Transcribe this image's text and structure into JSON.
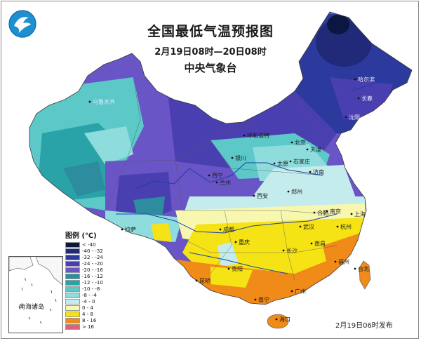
{
  "header": {
    "title": "全国最低气温预报图",
    "period": "2月19日08时—20日08时",
    "agency": "中央气象台"
  },
  "legend": {
    "title": "图例 (℃)",
    "items": [
      {
        "label": "< -40",
        "color": "#0b1740"
      },
      {
        "label": "-40 - -32",
        "color": "#202a78"
      },
      {
        "label": "-32 - -24",
        "color": "#2b3a9c"
      },
      {
        "label": "-24 - -20",
        "color": "#4a3fb0"
      },
      {
        "label": "-20 - -16",
        "color": "#6a55c6"
      },
      {
        "label": "-16 - -12",
        "color": "#2d8c9e"
      },
      {
        "label": "-12 - -10",
        "color": "#2aa3a8"
      },
      {
        "label": "-10 - -8",
        "color": "#5cc8c8"
      },
      {
        "label": "-8 - -4",
        "color": "#8fdcdc"
      },
      {
        "label": "-4 - 0",
        "color": "#c4ecec"
      },
      {
        "label": "0 - 4",
        "color": "#f7f7b0"
      },
      {
        "label": "4 - 8",
        "color": "#f5e315"
      },
      {
        "label": "8 - 16",
        "color": "#f08a18"
      },
      {
        "label": "> 16",
        "color": "#e0607a"
      }
    ]
  },
  "cities": [
    {
      "name": "哈尔滨",
      "light": true
    },
    {
      "name": "长春",
      "light": true
    },
    {
      "name": "乌鲁木齐",
      "light": true
    },
    {
      "name": "沈阳",
      "light": true
    },
    {
      "name": "呼和浩特",
      "light": false
    },
    {
      "name": "北京",
      "light": false
    },
    {
      "name": "天津",
      "light": false
    },
    {
      "name": "银川",
      "light": false
    },
    {
      "name": "太原",
      "light": false
    },
    {
      "name": "石家庄",
      "light": false
    },
    {
      "name": "济南",
      "light": false
    },
    {
      "name": "西宁",
      "light": false
    },
    {
      "name": "兰州",
      "light": false
    },
    {
      "name": "郑州",
      "light": false
    },
    {
      "name": "西安",
      "light": false
    },
    {
      "name": "合肥",
      "light": false
    },
    {
      "name": "南京",
      "light": false
    },
    {
      "name": "上海",
      "light": false
    },
    {
      "name": "拉萨",
      "light": false
    },
    {
      "name": "成都",
      "light": false
    },
    {
      "name": "武汉",
      "light": false
    },
    {
      "name": "杭州",
      "light": false
    },
    {
      "name": "重庆",
      "light": false
    },
    {
      "name": "长沙",
      "light": false
    },
    {
      "name": "南昌",
      "light": false
    },
    {
      "name": "贵阳",
      "light": false
    },
    {
      "name": "福州",
      "light": false
    },
    {
      "name": "台北",
      "light": false
    },
    {
      "name": "昆明",
      "light": false
    },
    {
      "name": "南宁",
      "light": false
    },
    {
      "name": "广州",
      "light": false
    },
    {
      "name": "海口",
      "light": false
    }
  ],
  "inset": {
    "label": "南海诸岛"
  },
  "footer": {
    "issued": "2月19日06时发布"
  }
}
